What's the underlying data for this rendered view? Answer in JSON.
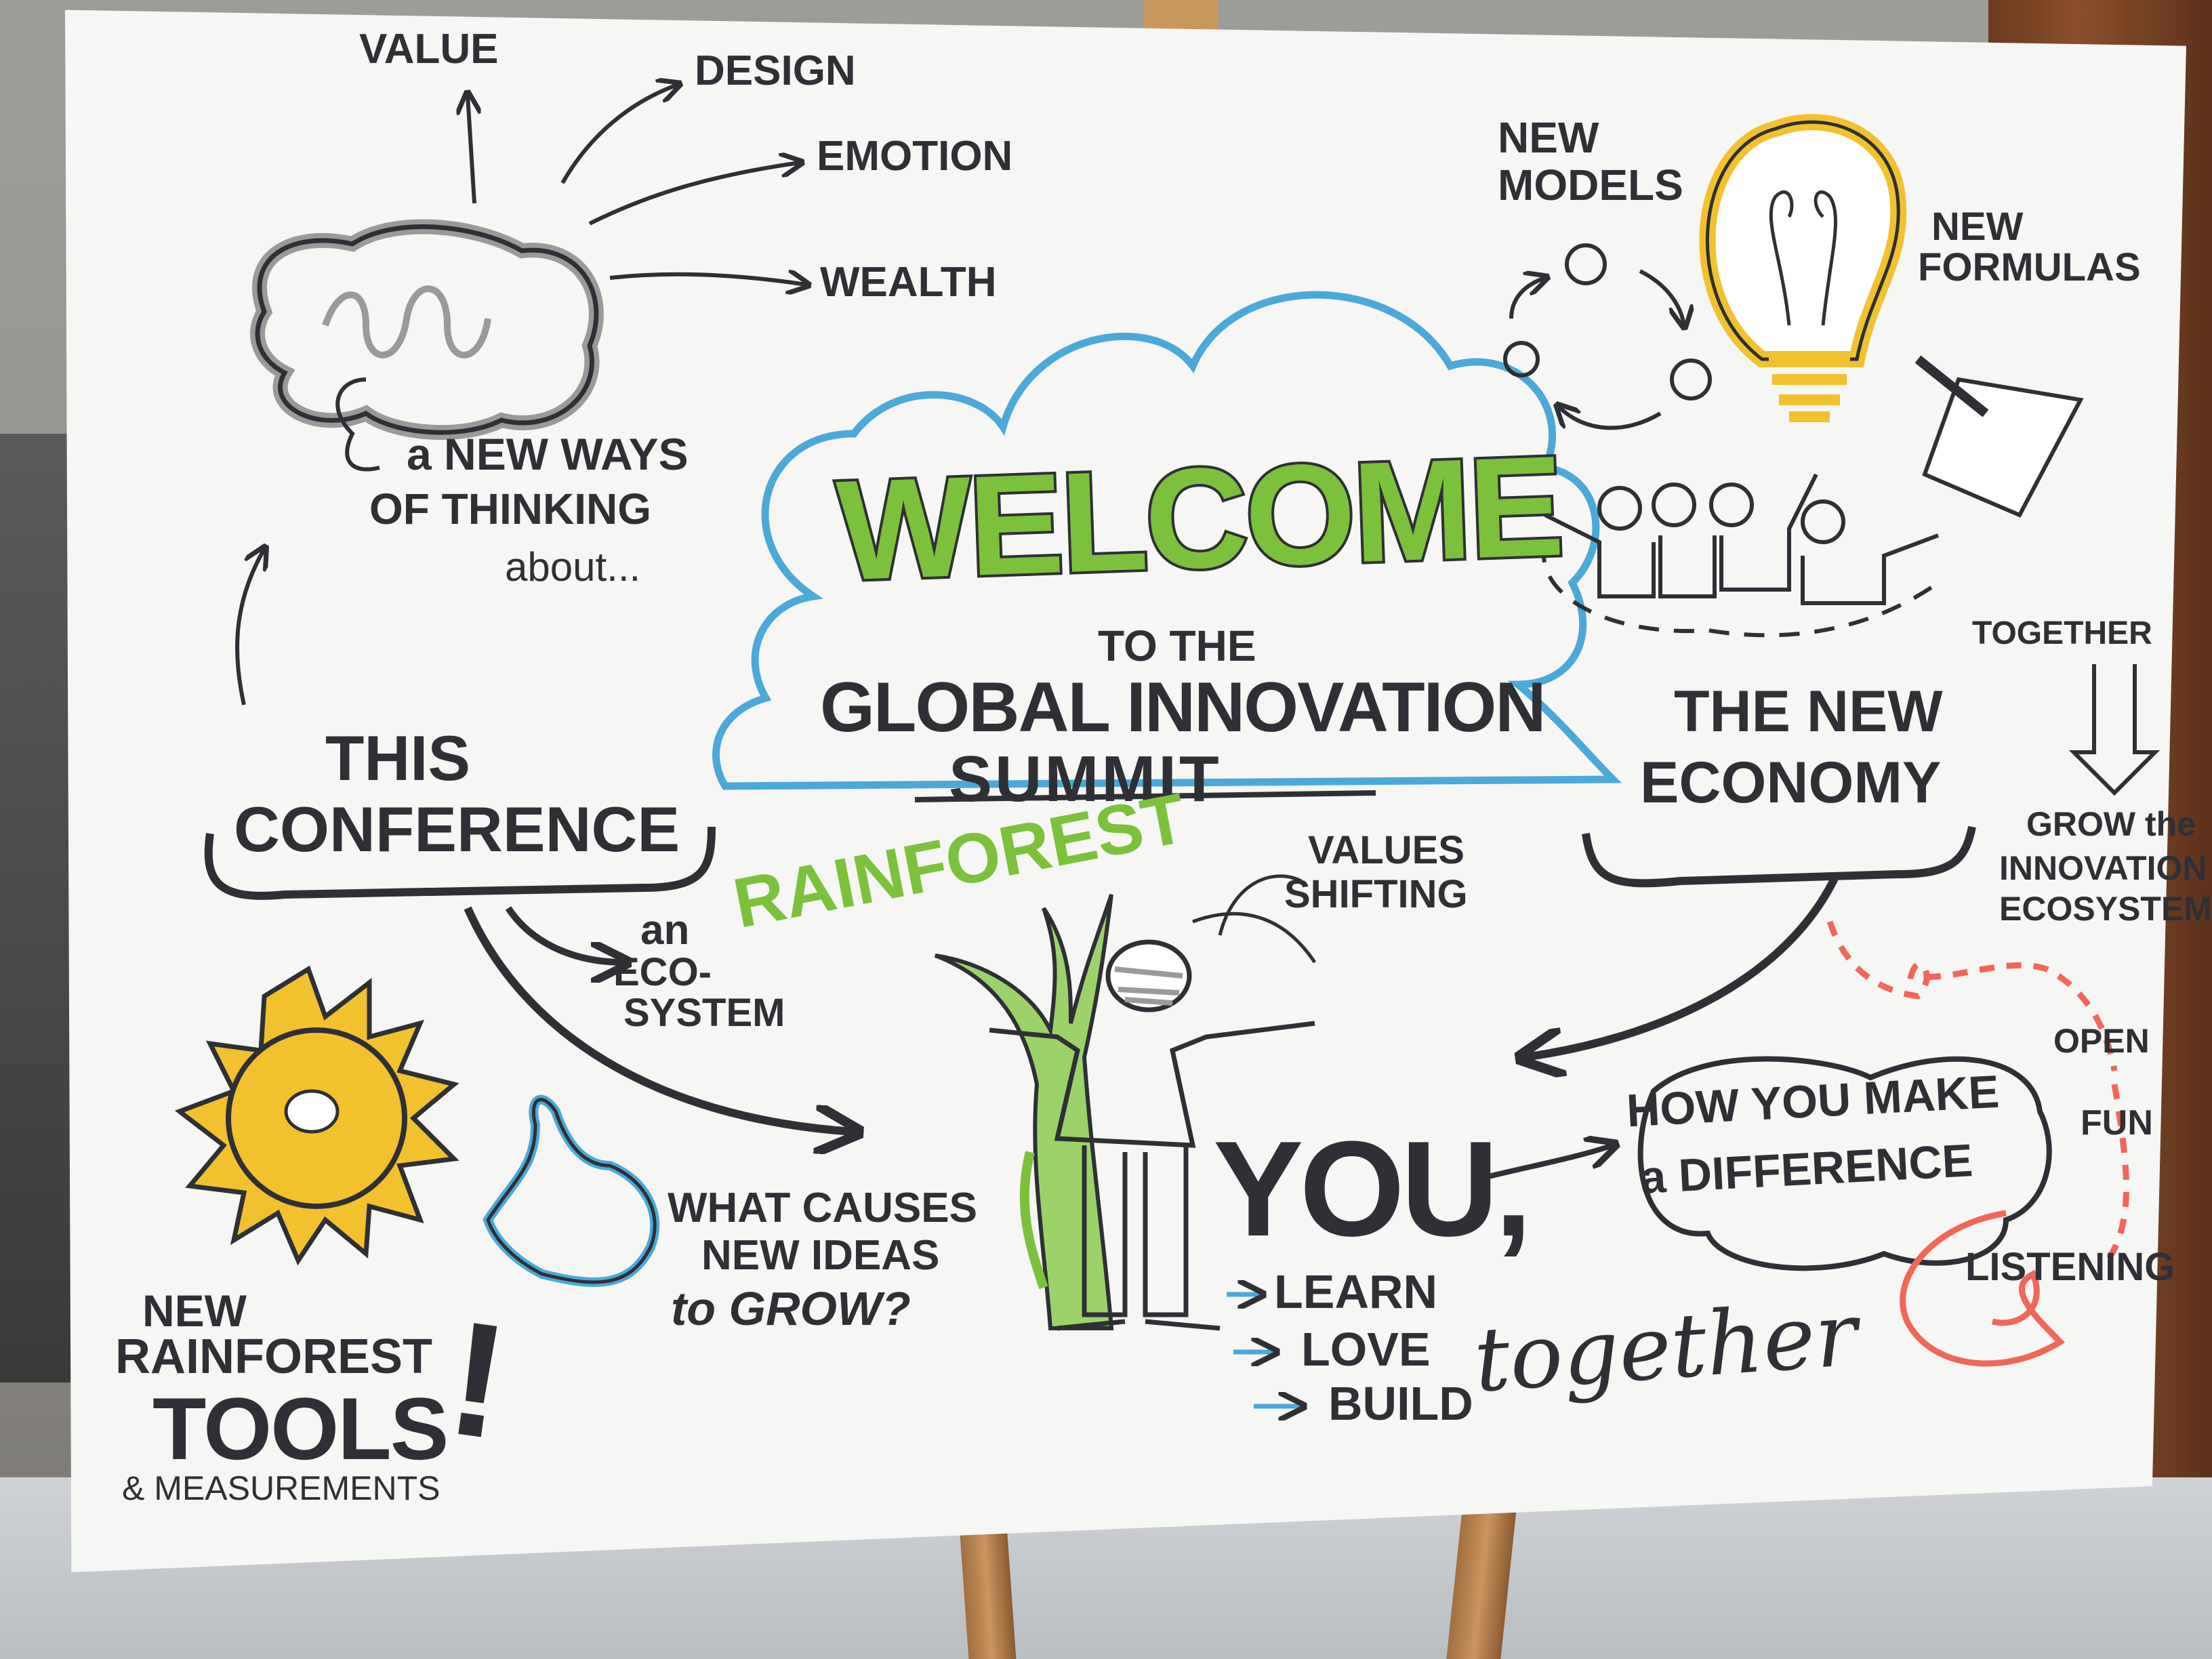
{
  "colors": {
    "ink": "#2e3035",
    "green": "#7cc13b",
    "blue": "#4aa9d9",
    "yellow": "#f2c12e",
    "coral": "#f0675a",
    "board": "#f6f6f4"
  },
  "welcome": {
    "title": "WELCOME",
    "to_the": "TO THE",
    "event_line1": "GLOBAL INNOVATION",
    "event_line2": "SUMMIT"
  },
  "brain": {
    "value": "VALUE",
    "design": "DESIGN",
    "emotion": "EMOTION",
    "wealth": "WEALTH",
    "caption_line1": "a NEW WAYS",
    "caption_line2": "OF THINKING",
    "caption_line3": "about..."
  },
  "conference": {
    "line1": "THIS",
    "line2": "CONFERENCE",
    "eco_line1": "an",
    "eco_line2": "ECO-",
    "eco_line3": "SYSTEM"
  },
  "rainforest": "RAINFOREST",
  "values_shifting": {
    "line1": "VALUES",
    "line2": "SHIFTING"
  },
  "new_models": {
    "models_line1": "NEW",
    "models_line2": "MODELS",
    "formulas_line1": "NEW",
    "formulas_line2": "FORMULAS"
  },
  "together_label": "TOGETHER",
  "new_economy": {
    "line1": "THE NEW",
    "line2": "ECONOMY"
  },
  "grow_ecosystem": {
    "line1": "GROW the",
    "line2": "INNOVATION",
    "line3": "ECOSYSTEM"
  },
  "difference": {
    "line1": "HOW YOU MAKE",
    "line2": "a DIFFERENCE",
    "open": "OPEN",
    "fun": "FUN",
    "listening": "LISTENING"
  },
  "question": {
    "line1": "WHAT CAUSES",
    "line2": "NEW IDEAS",
    "line3": "to GROW?"
  },
  "you": {
    "word": "YOU,",
    "learn": "LEARN",
    "love": "LOVE",
    "build": "BUILD",
    "together": "together"
  },
  "tools": {
    "line1": "NEW",
    "line2": "RAINFOREST",
    "line3": "TOOLS",
    "exclaim": "!",
    "measurements": "& MEASUREMENTS"
  }
}
